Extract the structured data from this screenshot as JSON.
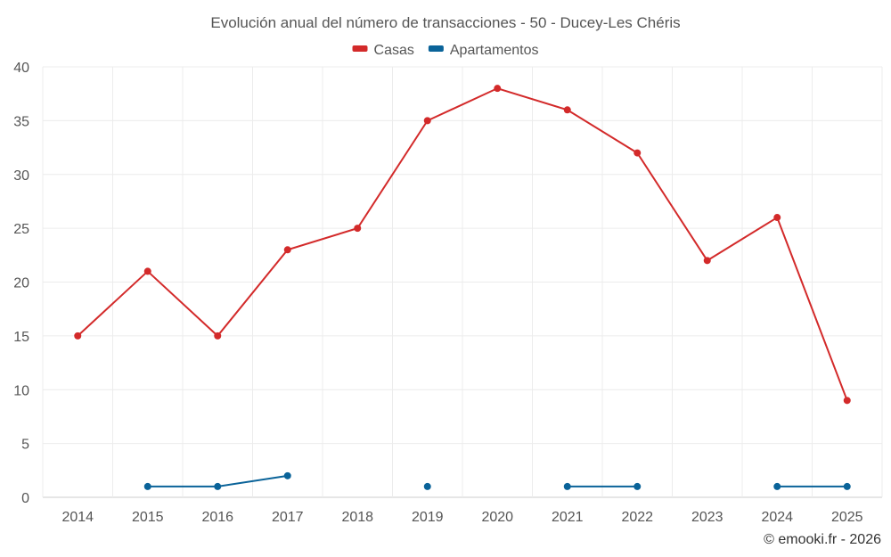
{
  "chart_data": {
    "type": "line",
    "title": "Evolución anual del número de transacciones - 50 - Ducey-Les Chéris",
    "xlabel": "",
    "ylabel": "",
    "categories": [
      "2014",
      "2015",
      "2016",
      "2017",
      "2018",
      "2019",
      "2020",
      "2021",
      "2022",
      "2023",
      "2024",
      "2025"
    ],
    "y_ticks": [
      "0",
      "5",
      "10",
      "15",
      "20",
      "25",
      "30",
      "35",
      "40"
    ],
    "ylim": [
      0,
      40
    ],
    "grid": true,
    "legend_position": "top-center",
    "series": [
      {
        "name": "Casas",
        "color": "#d32a2a",
        "values": [
          15,
          21,
          15,
          23,
          25,
          35,
          38,
          36,
          32,
          22,
          26,
          9
        ]
      },
      {
        "name": "Apartamentos",
        "color": "#0a6399",
        "values": [
          null,
          1,
          1,
          2,
          null,
          1,
          null,
          1,
          1,
          null,
          1,
          1
        ]
      }
    ]
  },
  "credit": "© emooki.fr - 2026"
}
